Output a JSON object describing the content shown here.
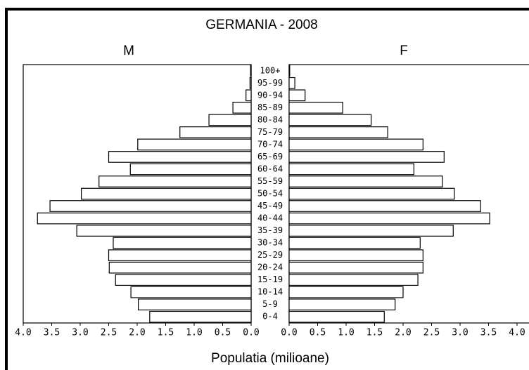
{
  "chart_data": {
    "type": "pyramid",
    "title": "GERMANIA - 2008",
    "x_label": "Populatia  (milioane)",
    "categories": [
      "0-4",
      "5-9",
      "10-14",
      "15-19",
      "20-24",
      "25-29",
      "30-34",
      "35-39",
      "40-44",
      "45-49",
      "50-54",
      "55-59",
      "60-64",
      "65-69",
      "70-74",
      "75-79",
      "80-84",
      "85-89",
      "90-94",
      "95-99",
      "100+"
    ],
    "series": [
      {
        "name": "M",
        "color": "#ffffff",
        "values": [
          1.78,
          1.98,
          2.11,
          2.38,
          2.49,
          2.5,
          2.42,
          3.06,
          3.75,
          3.53,
          2.98,
          2.67,
          2.12,
          2.5,
          1.99,
          1.25,
          0.74,
          0.32,
          0.09,
          0.02,
          0.01
        ]
      },
      {
        "name": "F",
        "color": "#ffffff",
        "values": [
          1.67,
          1.86,
          2.0,
          2.26,
          2.35,
          2.35,
          2.3,
          2.88,
          3.52,
          3.36,
          2.9,
          2.69,
          2.19,
          2.72,
          2.35,
          1.73,
          1.44,
          0.94,
          0.28,
          0.1,
          0.01
        ]
      }
    ],
    "xlim": [
      0,
      4
    ],
    "xticks": [
      {
        "value": 0,
        "label": "0.0"
      },
      {
        "value": 0.5,
        "label": "0.5"
      },
      {
        "value": 1,
        "label": "1.0"
      },
      {
        "value": 1.5,
        "label": "1.5"
      },
      {
        "value": 2,
        "label": "2.0"
      },
      {
        "value": 2.5,
        "label": "2.5"
      },
      {
        "value": 3,
        "label": "3.0"
      },
      {
        "value": 3.5,
        "label": "3.5"
      },
      {
        "value": 4,
        "label": "4.0"
      }
    ]
  }
}
